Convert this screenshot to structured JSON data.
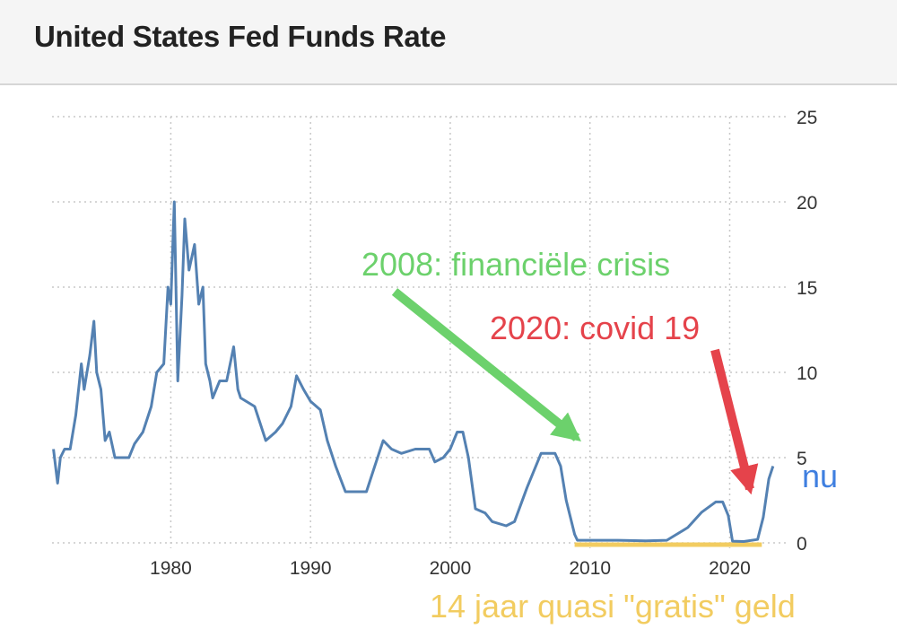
{
  "chart_data": {
    "type": "line",
    "title": "United States Fed Funds Rate",
    "xlabel": "",
    "ylabel": "",
    "xlim": [
      1971.5,
      2023.5
    ],
    "ylim": [
      0,
      25
    ],
    "grid": true,
    "x_ticks": [
      1980,
      1990,
      2000,
      2010,
      2020
    ],
    "y_ticks": [
      0,
      5,
      10,
      15,
      20,
      25
    ],
    "series": [
      {
        "name": "Fed Funds Rate",
        "color": "#5481b2",
        "points": [
          [
            1971.6,
            5.5
          ],
          [
            1971.9,
            3.5
          ],
          [
            1972.1,
            5.0
          ],
          [
            1972.4,
            5.5
          ],
          [
            1972.8,
            5.5
          ],
          [
            1973.2,
            7.5
          ],
          [
            1973.6,
            10.5
          ],
          [
            1973.8,
            9.0
          ],
          [
            1974.2,
            11.0
          ],
          [
            1974.5,
            13.0
          ],
          [
            1974.7,
            10.0
          ],
          [
            1975.0,
            9.0
          ],
          [
            1975.3,
            6.0
          ],
          [
            1975.6,
            6.5
          ],
          [
            1976.0,
            5.0
          ],
          [
            1976.5,
            5.0
          ],
          [
            1977.0,
            5.0
          ],
          [
            1977.4,
            5.8
          ],
          [
            1978.0,
            6.5
          ],
          [
            1978.6,
            8.0
          ],
          [
            1979.0,
            10.0
          ],
          [
            1979.5,
            10.5
          ],
          [
            1979.8,
            15.0
          ],
          [
            1980.0,
            14.0
          ],
          [
            1980.25,
            20.0
          ],
          [
            1980.5,
            9.5
          ],
          [
            1980.8,
            14.5
          ],
          [
            1981.0,
            19.0
          ],
          [
            1981.3,
            16.0
          ],
          [
            1981.7,
            17.5
          ],
          [
            1982.0,
            14.0
          ],
          [
            1982.3,
            15.0
          ],
          [
            1982.5,
            10.5
          ],
          [
            1982.8,
            9.5
          ],
          [
            1983.0,
            8.5
          ],
          [
            1983.5,
            9.5
          ],
          [
            1984.0,
            9.5
          ],
          [
            1984.5,
            11.5
          ],
          [
            1984.8,
            9.0
          ],
          [
            1985.0,
            8.5
          ],
          [
            1986.0,
            8.0
          ],
          [
            1986.8,
            6.0
          ],
          [
            1987.5,
            6.5
          ],
          [
            1988.0,
            7.0
          ],
          [
            1988.6,
            8.0
          ],
          [
            1989.0,
            9.8
          ],
          [
            1989.5,
            9.0
          ],
          [
            1990.0,
            8.3
          ],
          [
            1990.7,
            7.8
          ],
          [
            1991.2,
            6.0
          ],
          [
            1991.8,
            4.5
          ],
          [
            1992.5,
            3.0
          ],
          [
            1993.5,
            3.0
          ],
          [
            1994.0,
            3.0
          ],
          [
            1994.6,
            4.5
          ],
          [
            1995.2,
            6.0
          ],
          [
            1995.8,
            5.5
          ],
          [
            1996.5,
            5.25
          ],
          [
            1997.5,
            5.5
          ],
          [
            1998.5,
            5.5
          ],
          [
            1998.9,
            4.75
          ],
          [
            1999.5,
            5.0
          ],
          [
            2000.0,
            5.5
          ],
          [
            2000.5,
            6.5
          ],
          [
            2000.9,
            6.5
          ],
          [
            2001.3,
            5.0
          ],
          [
            2001.8,
            2.0
          ],
          [
            2002.5,
            1.75
          ],
          [
            2003.0,
            1.25
          ],
          [
            2004.0,
            1.0
          ],
          [
            2004.6,
            1.25
          ],
          [
            2005.5,
            3.25
          ],
          [
            2006.5,
            5.25
          ],
          [
            2007.5,
            5.25
          ],
          [
            2007.9,
            4.5
          ],
          [
            2008.3,
            2.5
          ],
          [
            2008.9,
            0.5
          ],
          [
            2009.1,
            0.15
          ],
          [
            2010.0,
            0.15
          ],
          [
            2012.0,
            0.15
          ],
          [
            2014.0,
            0.12
          ],
          [
            2015.5,
            0.15
          ],
          [
            2016.0,
            0.4
          ],
          [
            2017.0,
            0.9
          ],
          [
            2018.0,
            1.8
          ],
          [
            2019.0,
            2.4
          ],
          [
            2019.5,
            2.4
          ],
          [
            2019.9,
            1.6
          ],
          [
            2020.2,
            0.1
          ],
          [
            2021.0,
            0.08
          ],
          [
            2022.0,
            0.2
          ],
          [
            2022.4,
            1.5
          ],
          [
            2022.8,
            3.75
          ],
          [
            2023.1,
            4.5
          ]
        ]
      }
    ],
    "annotations": {
      "crisis": {
        "text": "2008: financiële crisis",
        "color": "#6cd16c"
      },
      "covid": {
        "text": "2020: covid 19",
        "color": "#e5434b"
      },
      "now": {
        "text": "nu",
        "color": "#3f7fe0"
      },
      "free_money": {
        "text": "14 jaar quasi \"gratis\" geld",
        "color": "#f2cc60"
      }
    }
  }
}
